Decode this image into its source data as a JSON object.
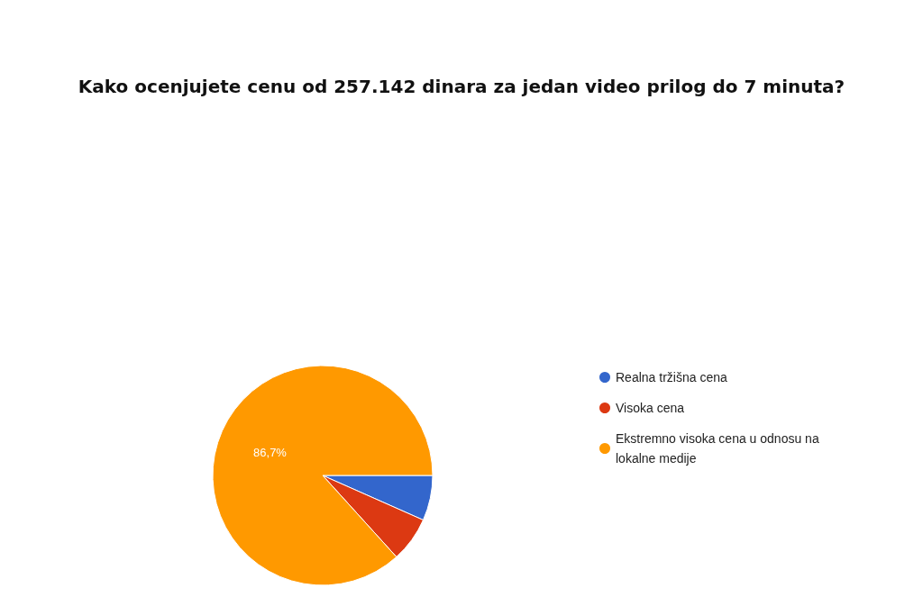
{
  "chart_data": {
    "type": "pie",
    "title": "Kako ocenjujete cenu od 257.142 dinara za jedan video prilog do 7 minuta?",
    "categories": [
      "Realna tržišna cena",
      "Visoka cena",
      "Ekstremno visoka cena u odnosu na lokalne medije"
    ],
    "values": [
      6.65,
      6.65,
      86.7
    ],
    "colors": [
      "#3366cc",
      "#dc3912",
      "#ff9900"
    ],
    "value_labels": [
      null,
      null,
      "86,7%"
    ],
    "legend": "right"
  }
}
